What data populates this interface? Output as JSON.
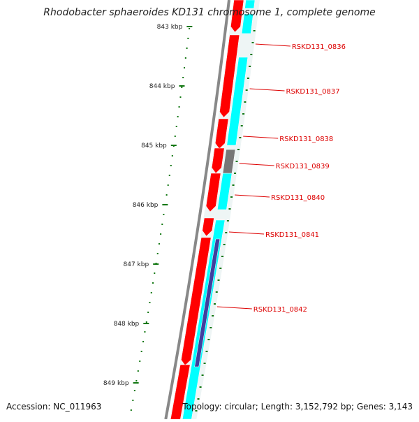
{
  "title": "Rhodobacter sphaeroides KD131 chromosome 1, complete genome",
  "footer": {
    "accession": "Accession: NC_011963",
    "summary": "Topology: circular; Length: 3,152,792 bp; Genes: 3,143"
  },
  "colors": {
    "backbone": "#888888",
    "gene_forward": "#ff0000",
    "gene_reverse": "#00ffff",
    "gene_other": "#777777",
    "highlight": "#3f3f9f",
    "label": "#dd0000",
    "tick": "#117711"
  },
  "scale_labels": [
    "843 kbp",
    "844 kbp",
    "845 kbp",
    "846 kbp",
    "847 kbp",
    "848 kbp",
    "849 kbp"
  ],
  "gene_labels": [
    "RSKD131_0836",
    "RSKD131_0837",
    "RSKD131_0838",
    "RSKD131_0839",
    "RSKD131_0840",
    "RSKD131_0841",
    "RSKD131_0842"
  ]
}
